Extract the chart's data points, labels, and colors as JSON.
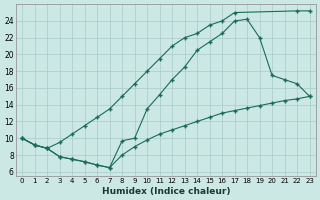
{
  "xlabel": "Humidex (Indice chaleur)",
  "background_color": "#cce8e4",
  "grid_color": "#a8cbc6",
  "line_color": "#1a6b5a",
  "xlim": [
    -0.5,
    23.5
  ],
  "ylim": [
    5.5,
    26
  ],
  "xticks": [
    0,
    1,
    2,
    3,
    4,
    5,
    6,
    7,
    8,
    9,
    10,
    11,
    12,
    13,
    14,
    15,
    16,
    17,
    18,
    19,
    20,
    21,
    22,
    23
  ],
  "yticks": [
    6,
    8,
    10,
    12,
    14,
    16,
    18,
    20,
    22,
    24
  ],
  "series1_x": [
    0,
    1,
    2,
    3,
    4,
    5,
    6,
    7,
    8,
    9,
    10,
    11,
    12,
    13,
    14,
    15,
    16,
    17,
    22,
    23
  ],
  "series1_y": [
    10,
    9.2,
    8.8,
    9.5,
    10.5,
    11.5,
    12.5,
    13.5,
    15.0,
    16.5,
    18.0,
    19.5,
    21.0,
    22.0,
    22.5,
    23.5,
    24.0,
    25.0,
    25.2,
    25.2
  ],
  "series2_x": [
    0,
    1,
    2,
    3,
    4,
    5,
    6,
    7,
    8,
    9,
    10,
    11,
    12,
    13,
    14,
    15,
    16,
    17,
    18,
    19,
    20,
    21,
    22,
    23
  ],
  "series2_y": [
    10,
    9.2,
    8.8,
    7.8,
    7.5,
    7.2,
    6.8,
    6.5,
    9.7,
    10.0,
    13.5,
    15.2,
    17.0,
    18.5,
    20.5,
    21.5,
    22.5,
    24.0,
    24.2,
    22.0,
    17.5,
    17.0,
    16.5,
    15.0
  ],
  "series3_x": [
    0,
    1,
    2,
    3,
    4,
    5,
    6,
    7,
    8,
    9,
    10,
    11,
    12,
    13,
    14,
    15,
    16,
    17,
    18,
    19,
    20,
    21,
    22,
    23
  ],
  "series3_y": [
    10,
    9.2,
    8.8,
    7.8,
    7.5,
    7.2,
    6.8,
    6.5,
    8.0,
    9.0,
    9.8,
    10.5,
    11.0,
    11.5,
    12.0,
    12.5,
    13.0,
    13.3,
    13.6,
    13.9,
    14.2,
    14.5,
    14.7,
    15.0
  ]
}
